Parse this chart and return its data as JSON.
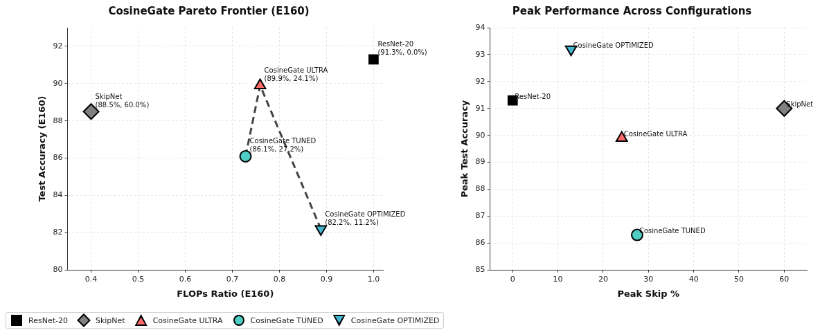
{
  "chart_data": [
    {
      "type": "scatter",
      "title": "CosineGate Pareto Frontier (E160)",
      "xlabel": "FLOPs Ratio (E160)",
      "ylabel": "Test Accuracy (E160)",
      "xlim": [
        0.35,
        1.02
      ],
      "ylim": [
        80,
        93
      ],
      "xticks": [
        0.4,
        0.5,
        0.6,
        0.7,
        0.8,
        0.9,
        {
          "value": 1,
          "label": "1.0"
        }
      ],
      "yticks": [
        80,
        82,
        84,
        86,
        88,
        90,
        92
      ],
      "grid": true,
      "legend": "bottom",
      "series": [
        {
          "name": "ResNet-20",
          "color": "#000000",
          "marker": "square",
          "x": [
            1.0
          ],
          "values": [
            91.3
          ]
        },
        {
          "name": "SkipNet",
          "color": "#808080",
          "marker": "diamond",
          "x": [
            0.4
          ],
          "values": [
            88.5
          ]
        },
        {
          "name": "CosineGate ULTRA",
          "color": "#ff6b6b",
          "marker": "triangle",
          "x": [
            0.759
          ],
          "values": [
            89.9
          ]
        },
        {
          "name": "CosineGate TUNED",
          "color": "#4ecdc4",
          "marker": "circle",
          "x": [
            0.728
          ],
          "values": [
            86.1
          ]
        },
        {
          "name": "CosineGate OPTIMIZED",
          "color": "#45b7d1",
          "marker": "triangle-down",
          "x": [
            0.888
          ],
          "values": [
            82.2
          ]
        },
        {
          "type": "line",
          "color": "#444444",
          "line_style": "dashed",
          "marker": "none",
          "x": [
            0.728,
            0.759,
            0.888
          ],
          "values": [
            86.1,
            89.9,
            82.2
          ]
        }
      ],
      "annotations": [
        {
          "text": "ResNet-20\n(91.3%, 0.0%)",
          "x": 1.0,
          "y": 91.3
        },
        {
          "text": "SkipNet\n(88.5%, 60.0%)",
          "x": 0.4,
          "y": 88.5
        },
        {
          "text": "CosineGate ULTRA\n(89.9%, 24.1%)",
          "x": 0.759,
          "y": 89.9
        },
        {
          "text": "CosineGate TUNED\n(86.1%, 27.2%)",
          "x": 0.728,
          "y": 86.1
        },
        {
          "text": "CosineGate OPTIMIZED\n(82.2%, 11.2%)",
          "x": 0.888,
          "y": 82.2
        }
      ]
    },
    {
      "type": "scatter",
      "title": "Peak Performance Across Configurations",
      "xlabel": "Peak Skip %",
      "ylabel": "Peak Test Accuracy",
      "xlim": [
        -5,
        65
      ],
      "ylim": [
        85,
        94
      ],
      "xticks": [
        0,
        10,
        20,
        30,
        40,
        50,
        60
      ],
      "yticks": [
        85,
        86,
        87,
        88,
        89,
        90,
        91,
        92,
        93,
        94
      ],
      "grid": true,
      "series": [
        {
          "name": "ResNet-20",
          "color": "#000000",
          "marker": "square",
          "x": [
            0
          ],
          "values": [
            91.3
          ]
        },
        {
          "name": "SkipNet",
          "color": "#808080",
          "marker": "diamond",
          "x": [
            60
          ],
          "values": [
            91.0
          ]
        },
        {
          "name": "CosineGate ULTRA",
          "color": "#ff6b6b",
          "marker": "triangle",
          "x": [
            24.1
          ],
          "values": [
            89.9
          ]
        },
        {
          "name": "CosineGate TUNED",
          "color": "#4ecdc4",
          "marker": "circle",
          "x": [
            27.5
          ],
          "values": [
            86.3
          ]
        },
        {
          "name": "CosineGate OPTIMIZED",
          "color": "#45b7d1",
          "marker": "triangle-down",
          "x": [
            12.9
          ],
          "values": [
            93.2
          ]
        }
      ]
    }
  ]
}
